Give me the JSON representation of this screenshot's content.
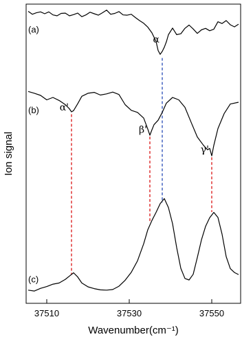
{
  "chart_data": {
    "type": "line",
    "xlabel": "Wavenumber(cm⁻¹)",
    "ylabel": "Ion signal",
    "xlim": [
      37505,
      37557
    ],
    "ylim": [
      0,
      1
    ],
    "xticks": [
      37510,
      37530,
      37550
    ],
    "xtick_labels": [
      "37510",
      "37530",
      "37550"
    ],
    "grid": false,
    "colors": {
      "trace": "#000000",
      "alpha_line": "#3355bb",
      "prime_lines": "#dd2222"
    },
    "series": [
      {
        "panel": "(a)",
        "x": [
          37505.5,
          37506.5,
          37507.5,
          37508.5,
          37509.5,
          37510.5,
          37511.5,
          37512.5,
          37513.5,
          37514.5,
          37515.5,
          37516.5,
          37517.5,
          37518.5,
          37519.5,
          37520.5,
          37521.5,
          37522.5,
          37523.5,
          37524.5,
          37525.5,
          37526.5,
          37527.5,
          37528.5,
          37529.5,
          37530.5,
          37531.5,
          37532.5,
          37533.5,
          37534.5,
          37535.5,
          37536.5,
          37537.0,
          37537.5,
          37538.0,
          37538.5,
          37539.0,
          37539.5,
          37540.5,
          37541.5,
          37542.5,
          37543.5,
          37544.5,
          37545.5,
          37546.5,
          37547.5,
          37548.5,
          37549.5,
          37550.5,
          37551.5,
          37552.5,
          37553.5,
          37554.5,
          37555.5,
          37556.5
        ],
        "y": [
          0.976,
          0.966,
          0.971,
          0.974,
          0.968,
          0.974,
          0.964,
          0.961,
          0.969,
          0.97,
          0.961,
          0.965,
          0.97,
          0.958,
          0.964,
          0.973,
          0.968,
          0.963,
          0.971,
          0.98,
          0.966,
          0.969,
          0.975,
          0.964,
          0.963,
          0.966,
          0.955,
          0.945,
          0.936,
          0.923,
          0.904,
          0.875,
          0.845,
          0.832,
          0.842,
          0.856,
          0.874,
          0.898,
          0.92,
          0.898,
          0.901,
          0.919,
          0.93,
          0.917,
          0.902,
          0.914,
          0.919,
          0.911,
          0.916,
          0.941,
          0.935,
          0.945,
          0.931,
          0.924,
          0.933
        ]
      },
      {
        "panel": "(b)",
        "x": [
          37505.5,
          37507.0,
          37508.5,
          37510.0,
          37511.5,
          37513.0,
          37514.5,
          37515.5,
          37516.0,
          37516.5,
          37517.5,
          37518.5,
          37520.0,
          37521.5,
          37523.0,
          37524.5,
          37526.0,
          37527.5,
          37529.0,
          37530.5,
          37532.0,
          37533.5,
          37534.5,
          37535.0,
          37535.5,
          37536.0,
          37537.0,
          37538.0,
          37539.0,
          37540.5,
          37542.0,
          37543.5,
          37545.0,
          37546.5,
          37548.0,
          37549.0,
          37549.5,
          37550.0,
          37550.5,
          37551.5,
          37553.0,
          37554.5,
          37556.5
        ],
        "y": [
          0.708,
          0.702,
          0.695,
          0.68,
          0.688,
          0.678,
          0.664,
          0.65,
          0.64,
          0.644,
          0.667,
          0.692,
          0.702,
          0.705,
          0.696,
          0.7,
          0.706,
          0.698,
          0.664,
          0.645,
          0.638,
          0.619,
          0.582,
          0.562,
          0.58,
          0.597,
          0.612,
          0.638,
          0.669,
          0.688,
          0.68,
          0.655,
          0.605,
          0.556,
          0.528,
          0.513,
          0.518,
          0.493,
          0.528,
          0.584,
          0.634,
          0.666,
          0.672
        ]
      },
      {
        "panel": "(c)",
        "x": [
          37505.5,
          37507.0,
          37508.5,
          37510.0,
          37511.5,
          37513.0,
          37514.5,
          37515.5,
          37516.5,
          37517.5,
          37518.5,
          37520.0,
          37521.5,
          37523.0,
          37524.5,
          37526.0,
          37527.5,
          37529.0,
          37530.5,
          37532.0,
          37533.5,
          37534.5,
          37535.5,
          37536.5,
          37537.5,
          37538.5,
          37539.5,
          37540.5,
          37541.5,
          37542.5,
          37543.5,
          37544.5,
          37545.5,
          37546.5,
          37547.5,
          37548.5,
          37549.5,
          37550.5,
          37551.5,
          37552.5,
          37553.5,
          37554.5,
          37555.5,
          37556.5
        ],
        "y": [
          0.044,
          0.041,
          0.05,
          0.056,
          0.064,
          0.068,
          0.08,
          0.091,
          0.102,
          0.088,
          0.068,
          0.055,
          0.049,
          0.045,
          0.044,
          0.046,
          0.057,
          0.077,
          0.104,
          0.142,
          0.199,
          0.246,
          0.277,
          0.304,
          0.333,
          0.35,
          0.32,
          0.266,
          0.186,
          0.117,
          0.083,
          0.078,
          0.097,
          0.153,
          0.212,
          0.257,
          0.286,
          0.304,
          0.287,
          0.231,
          0.156,
          0.116,
          0.103,
          0.096
        ]
      }
    ],
    "panel_labels": [
      "(a)",
      "(b)",
      "(c)"
    ],
    "annotations": [
      {
        "label": "α",
        "x": 37538.0,
        "y_top": 0.82,
        "y_bottom": 0.337,
        "line_color": "#3355bb",
        "label_y": 0.872
      },
      {
        "label": "α'",
        "x": 37516.0,
        "y_top": 0.632,
        "y_bottom": 0.097,
        "line_color": "#dd2222",
        "label_y": 0.645
      },
      {
        "label": "β'",
        "x": 37535.0,
        "y_top": 0.557,
        "y_bottom": 0.27,
        "line_color": "#dd2222",
        "label_y": 0.57
      },
      {
        "label": "γ'",
        "x": 37550.0,
        "y_top": 0.488,
        "y_bottom": 0.305,
        "line_color": "#dd2222",
        "label_y": 0.503
      }
    ]
  }
}
